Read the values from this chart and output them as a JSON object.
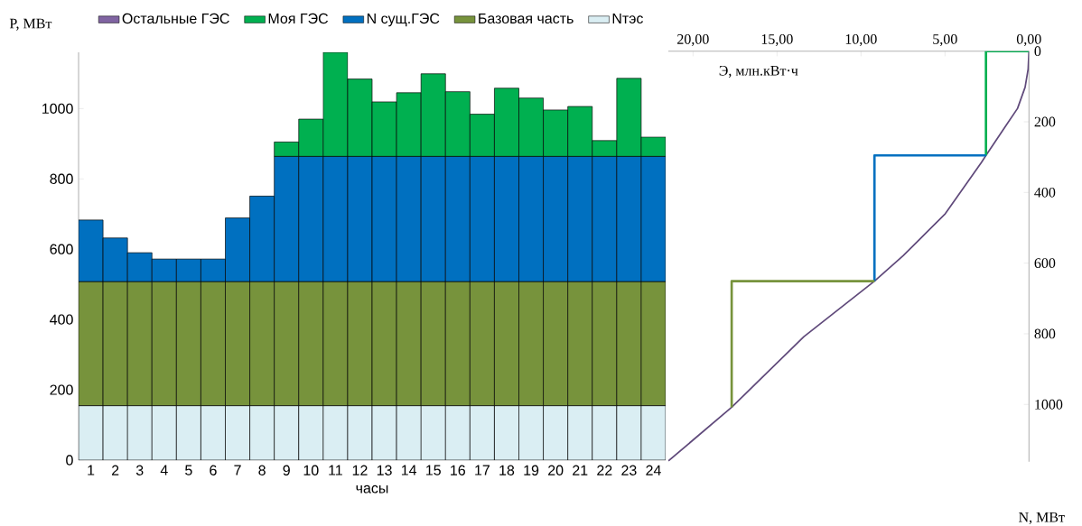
{
  "chart_data": [
    {
      "type": "bar",
      "stacked": true,
      "ylabel": "P, МВт",
      "xlabel": "часы",
      "legend": "top",
      "categories": [
        "1",
        "2",
        "3",
        "4",
        "5",
        "6",
        "7",
        "8",
        "9",
        "10",
        "11",
        "12",
        "13",
        "14",
        "15",
        "16",
        "17",
        "18",
        "19",
        "20",
        "21",
        "22",
        "23",
        "24"
      ],
      "ylim": [
        0,
        1160
      ],
      "yticks": [
        0,
        200,
        400,
        600,
        800,
        1000
      ],
      "series": [
        {
          "name": "Nтэс",
          "color": "#daeef3",
          "values": [
            155,
            155,
            155,
            155,
            155,
            155,
            155,
            155,
            155,
            155,
            155,
            155,
            155,
            155,
            155,
            155,
            155,
            155,
            155,
            155,
            155,
            155,
            155,
            155
          ]
        },
        {
          "name": "Базовая часть",
          "color": "#77933c",
          "values": [
            353,
            353,
            353,
            353,
            353,
            353,
            353,
            353,
            353,
            353,
            353,
            353,
            353,
            353,
            353,
            353,
            353,
            353,
            353,
            353,
            353,
            353,
            353,
            353
          ]
        },
        {
          "name": "N сущ.ГЭС",
          "color": "#0070c0",
          "values": [
            175,
            124,
            82,
            64,
            64,
            64,
            181,
            243,
            356,
            356,
            356,
            356,
            356,
            356,
            356,
            356,
            356,
            356,
            356,
            356,
            356,
            356,
            356,
            356
          ]
        },
        {
          "name": "Моя ГЭС",
          "color": "#00b050",
          "values": [
            null,
            null,
            null,
            null,
            null,
            null,
            null,
            null,
            41,
            106,
            296,
            220,
            155,
            181,
            235,
            184,
            120,
            194,
            166,
            132,
            142,
            45,
            222,
            55
          ]
        },
        {
          "name": "Остальные ГЭС",
          "color": "#8064a2",
          "values": [
            null,
            null,
            null,
            null,
            null,
            null,
            null,
            null,
            null,
            null,
            null,
            null,
            null,
            null,
            null,
            null,
            null,
            null,
            null,
            null,
            null,
            null,
            null,
            null
          ]
        }
      ]
    },
    {
      "type": "line",
      "xlabel": "Э, млн.кВт·ч",
      "ylabel": "N, МВт",
      "xlim": [
        21.47,
        0
      ],
      "xticks": [
        {
          "value": 20,
          "label": "20,00"
        },
        {
          "value": 15,
          "label": "15,00"
        },
        {
          "value": 10,
          "label": "10,00"
        },
        {
          "value": 5,
          "label": "5,00"
        },
        {
          "value": 0,
          "label": "0,00"
        }
      ],
      "ylim": [
        1162,
        0
      ],
      "yticks": [
        0,
        200,
        400,
        600,
        800,
        1000
      ],
      "series": [
        {
          "color": "#604a7b",
          "x": [
            0,
            0.05,
            0.23,
            0.68,
            1.4,
            2.56,
            2.83,
            4.98,
            7.49,
            9.2,
            13.4,
            17.7,
            21.47
          ],
          "values": [
            0,
            51,
            102,
            162,
            213,
            295,
            315,
            460,
            579,
            651,
            808,
            1008,
            1160
          ]
        },
        {
          "color": "#00b050",
          "x": [
            0,
            2.56,
            2.56
          ],
          "values": [
            0,
            0,
            295
          ]
        },
        {
          "color": "#0070c0",
          "x": [
            2.56,
            9.2,
            9.2
          ],
          "values": [
            295,
            295,
            651
          ]
        },
        {
          "color": "#77933c",
          "x": [
            9.2,
            17.7,
            17.7
          ],
          "values": [
            651,
            651,
            1008
          ]
        }
      ]
    }
  ]
}
